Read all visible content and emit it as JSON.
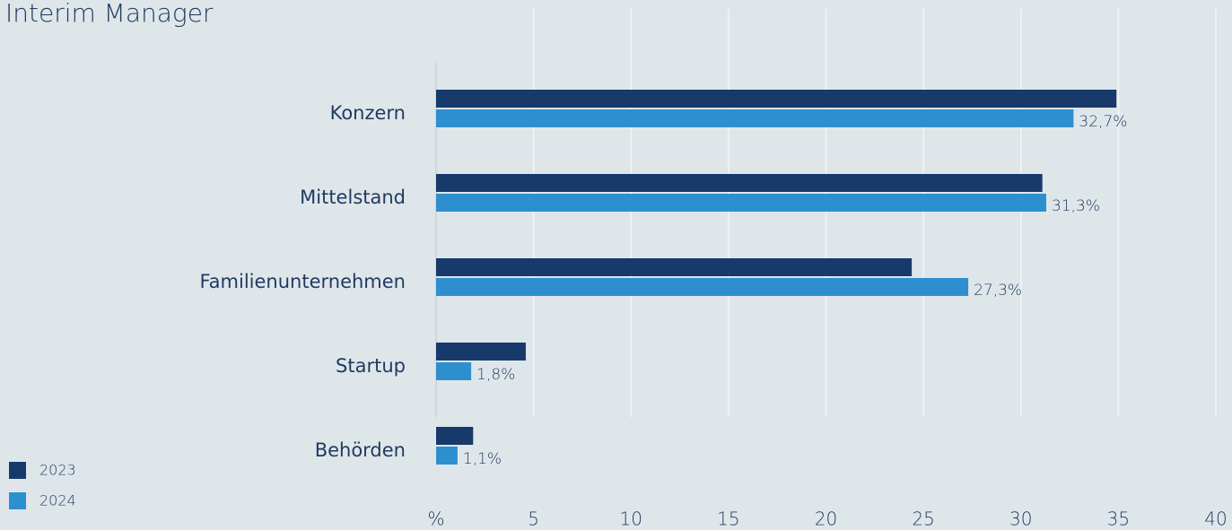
{
  "chart_data": {
    "type": "bar",
    "orientation": "horizontal",
    "title": "Interim Manager",
    "categories": [
      "Konzern",
      "Mittelstand",
      "Familienunternehmen",
      "Startup",
      "Behörden"
    ],
    "series": [
      {
        "name": "2023",
        "color": "#173a6b",
        "values": [
          34.9,
          31.1,
          24.4,
          4.6,
          1.9
        ]
      },
      {
        "name": "2024",
        "color": "#2e8fcf",
        "values": [
          32.7,
          31.3,
          27.3,
          1.8,
          1.1
        ],
        "value_labels": [
          "32,7%",
          "31,3%",
          "27,3%",
          "1,8%",
          "1,1%"
        ]
      }
    ],
    "xlim": [
      0,
      40
    ],
    "xticks": [
      {
        "value": 0,
        "label": "%"
      },
      5,
      10,
      15,
      20,
      25,
      30,
      35,
      40
    ],
    "grid": true,
    "legend": "lower left"
  }
}
